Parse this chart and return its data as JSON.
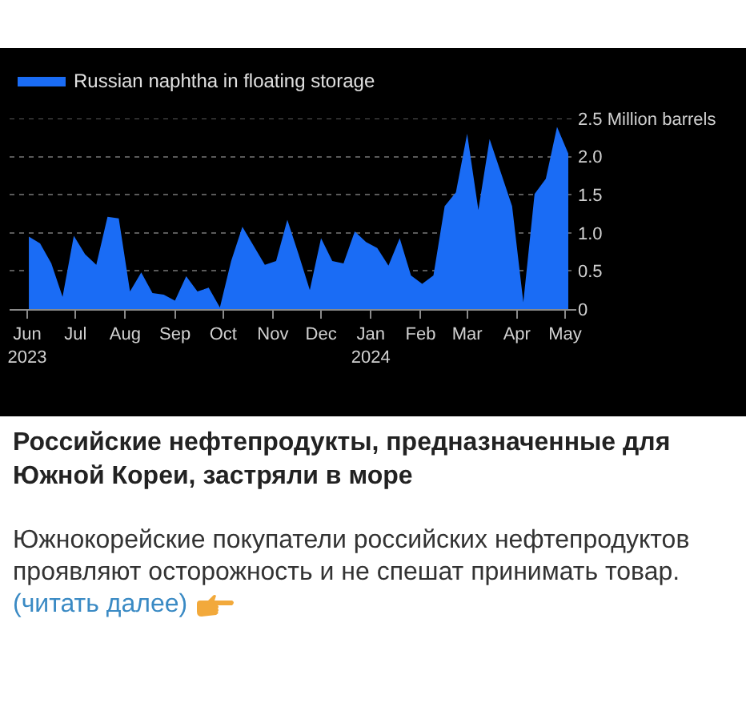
{
  "chart_data": {
    "type": "area",
    "title": "Российские нефтепродукты, предназначенные для Южной Кореи, застряли в море",
    "annotations": [
      "Южнокорейские покупатели российских нефтепродуктов проявляют осторожность и не спешат принимать товар.",
      "(читать далее)"
    ],
    "x": [
      "2023-06-02",
      "2023-06-09",
      "2023-06-16",
      "2023-06-23",
      "2023-06-30",
      "2023-07-07",
      "2023-07-14",
      "2023-07-21",
      "2023-07-28",
      "2023-08-04",
      "2023-08-11",
      "2023-08-18",
      "2023-08-25",
      "2023-09-01",
      "2023-09-08",
      "2023-09-15",
      "2023-09-22",
      "2023-09-29",
      "2023-10-06",
      "2023-10-13",
      "2023-10-20",
      "2023-10-27",
      "2023-11-03",
      "2023-11-10",
      "2023-11-17",
      "2023-11-24",
      "2023-12-01",
      "2023-12-08",
      "2023-12-15",
      "2023-12-22",
      "2023-12-29",
      "2024-01-05",
      "2024-01-12",
      "2024-01-19",
      "2024-01-26",
      "2024-02-02",
      "2024-02-09",
      "2024-02-16",
      "2024-02-23",
      "2024-03-01",
      "2024-03-08",
      "2024-03-15",
      "2024-03-22",
      "2024-03-29",
      "2024-04-05",
      "2024-04-12",
      "2024-04-19",
      "2024-04-26",
      "2024-05-03"
    ],
    "series": [
      {
        "name": "Russian naphtha in floating storage",
        "color": "#1a6cf5",
        "values": [
          0.95,
          0.86,
          0.6,
          0.16,
          0.96,
          0.72,
          0.58,
          1.21,
          1.19,
          0.23,
          0.48,
          0.21,
          0.19,
          0.11,
          0.43,
          0.23,
          0.28,
          0.02,
          0.63,
          1.08,
          0.83,
          0.58,
          0.63,
          1.17,
          0.72,
          0.25,
          0.93,
          0.63,
          0.6,
          1.02,
          0.88,
          0.8,
          0.57,
          0.93,
          0.44,
          0.33,
          0.44,
          1.35,
          1.53,
          2.3,
          1.3,
          2.23,
          1.79,
          1.35,
          0.09,
          1.51,
          1.71,
          2.39,
          2.04
        ]
      }
    ],
    "xlim": [
      "2023-05-21",
      "2024-05-08"
    ],
    "xticks": [
      {
        "value": "2023-06-01",
        "label": "Jun\n2023"
      },
      {
        "value": "2023-07-01",
        "label": "Jul"
      },
      {
        "value": "2023-08-01",
        "label": "Aug"
      },
      {
        "value": "2023-09-01",
        "label": "Sep"
      },
      {
        "value": "2023-10-01",
        "label": "Oct"
      },
      {
        "value": "2023-11-01",
        "label": "Nov"
      },
      {
        "value": "2023-12-01",
        "label": "Dec"
      },
      {
        "value": "2024-01-01",
        "label": "Jan\n2024"
      },
      {
        "value": "2024-02-01",
        "label": "Feb"
      },
      {
        "value": "2024-03-01",
        "label": "Mar"
      },
      {
        "value": "2024-04-01",
        "label": "Apr"
      },
      {
        "value": "2024-05-01",
        "label": "May"
      }
    ],
    "ylim": [
      0,
      2.5
    ],
    "yticks": [
      0,
      0.5,
      {
        "value": 1,
        "label": "1.0"
      },
      1.5,
      {
        "value": 2,
        "label": "2.0"
      },
      {
        "value": 2.5,
        "label": "2.5 Million barrels"
      }
    ],
    "grid": "y",
    "legend": "top left"
  }
}
